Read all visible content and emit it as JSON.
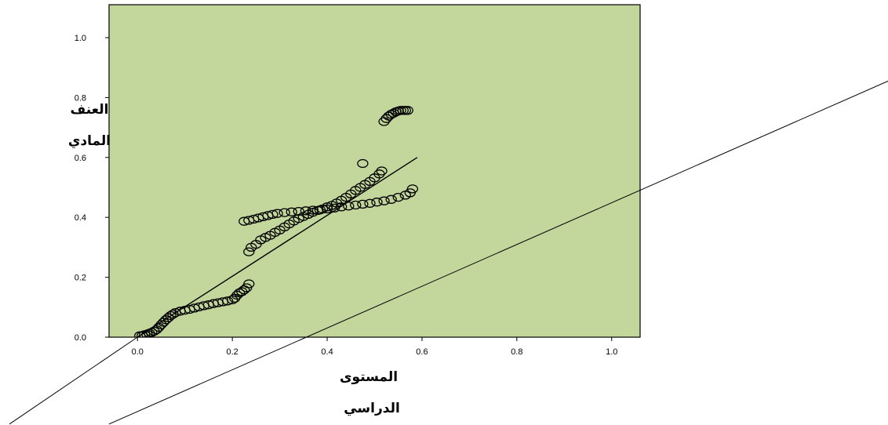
{
  "chart_data": {
    "type": "scatter",
    "title": "",
    "ylabel_lines": [
      "العنف",
      "المادي"
    ],
    "xlabel_lines": [
      "المستوى",
      "الدراسي"
    ],
    "xlim": [
      -0.06,
      1.06
    ],
    "ylim": [
      0.0,
      1.11
    ],
    "xticks": [
      0.0,
      0.2,
      0.4,
      0.6,
      0.8,
      1.0
    ],
    "xtick_labels": [
      "0.0",
      "0.2",
      "0.4",
      "0.6",
      "0.8",
      "1.0"
    ],
    "yticks": [
      0.0,
      0.2,
      0.4,
      0.6,
      0.8,
      1.0
    ],
    "ytick_labels": [
      "0.0",
      "0.2",
      "0.4",
      "0.6",
      "0.8",
      "1.0"
    ],
    "grid": false,
    "legend": "none",
    "plot_background": "#c3d69b",
    "marker": "circle-open",
    "fit_line": {
      "x": [
        0.0,
        0.59
      ],
      "y": [
        0.0,
        0.6
      ]
    },
    "diagonal_lines": [
      {
        "x": [
          -0.27,
          0.0
        ],
        "y": [
          -0.29,
          0.0
        ]
      },
      {
        "x": [
          -0.06,
          1.59
        ],
        "y": [
          -0.29,
          0.86
        ]
      }
    ],
    "series": [
      {
        "x": [
          0.005,
          0.01,
          0.015,
          0.02,
          0.025,
          0.03,
          0.035,
          0.04,
          0.045,
          0.05,
          0.055,
          0.06,
          0.065,
          0.07,
          0.075,
          0.08,
          0.09,
          0.1,
          0.11,
          0.12,
          0.13,
          0.14,
          0.15,
          0.16,
          0.17,
          0.18,
          0.19,
          0.2,
          0.205,
          0.21,
          0.215,
          0.22,
          0.225,
          0.23,
          0.235,
          0.225,
          0.235,
          0.245,
          0.255,
          0.265,
          0.275,
          0.285,
          0.295,
          0.31,
          0.325,
          0.34,
          0.355,
          0.37,
          0.385,
          0.4,
          0.415,
          0.43,
          0.445,
          0.46,
          0.475,
          0.49,
          0.505,
          0.52,
          0.535,
          0.55,
          0.565,
          0.575,
          0.58,
          0.235,
          0.24,
          0.25,
          0.26,
          0.27,
          0.28,
          0.29,
          0.3,
          0.31,
          0.32,
          0.33,
          0.34,
          0.35,
          0.36,
          0.37,
          0.38,
          0.39,
          0.4,
          0.41,
          0.42,
          0.43,
          0.44,
          0.45,
          0.46,
          0.47,
          0.48,
          0.49,
          0.5,
          0.51,
          0.515,
          0.475,
          0.52,
          0.525,
          0.53,
          0.535,
          0.54,
          0.545,
          0.55,
          0.555,
          0.56,
          0.565,
          0.57
        ],
        "y": [
          0.005,
          0.005,
          0.008,
          0.01,
          0.013,
          0.016,
          0.02,
          0.025,
          0.033,
          0.042,
          0.05,
          0.058,
          0.065,
          0.072,
          0.077,
          0.082,
          0.087,
          0.09,
          0.093,
          0.097,
          0.101,
          0.105,
          0.108,
          0.112,
          0.115,
          0.118,
          0.121,
          0.125,
          0.13,
          0.14,
          0.148,
          0.152,
          0.158,
          0.165,
          0.178,
          0.387,
          0.39,
          0.394,
          0.398,
          0.402,
          0.406,
          0.41,
          0.413,
          0.416,
          0.418,
          0.42,
          0.422,
          0.424,
          0.425,
          0.428,
          0.431,
          0.435,
          0.438,
          0.441,
          0.444,
          0.447,
          0.451,
          0.455,
          0.46,
          0.467,
          0.474,
          0.482,
          0.495,
          0.285,
          0.3,
          0.31,
          0.325,
          0.333,
          0.34,
          0.35,
          0.358,
          0.368,
          0.378,
          0.388,
          0.396,
          0.403,
          0.41,
          0.417,
          0.423,
          0.428,
          0.435,
          0.44,
          0.448,
          0.457,
          0.467,
          0.478,
          0.49,
          0.5,
          0.51,
          0.52,
          0.532,
          0.545,
          0.555,
          0.58,
          0.72,
          0.73,
          0.738,
          0.744,
          0.748,
          0.752,
          0.755,
          0.757,
          0.757,
          0.757,
          0.757
        ]
      }
    ]
  }
}
